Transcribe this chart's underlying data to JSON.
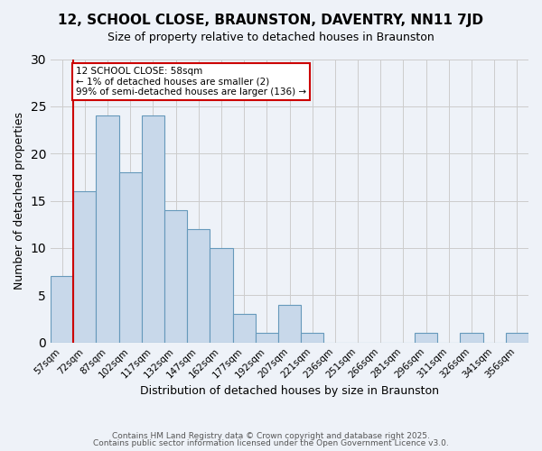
{
  "title": "12, SCHOOL CLOSE, BRAUNSTON, DAVENTRY, NN11 7JD",
  "subtitle": "Size of property relative to detached houses in Braunston",
  "xlabel": "Distribution of detached houses by size in Braunston",
  "ylabel": "Number of detached properties",
  "bar_color": "#c8d8ea",
  "bar_edge_color": "#6699bb",
  "categories": [
    "57sqm",
    "72sqm",
    "87sqm",
    "102sqm",
    "117sqm",
    "132sqm",
    "147sqm",
    "162sqm",
    "177sqm",
    "192sqm",
    "207sqm",
    "221sqm",
    "236sqm",
    "251sqm",
    "266sqm",
    "281sqm",
    "296sqm",
    "311sqm",
    "326sqm",
    "341sqm",
    "356sqm"
  ],
  "values": [
    7,
    16,
    24,
    18,
    24,
    14,
    12,
    10,
    3,
    1,
    4,
    1,
    0,
    0,
    0,
    0,
    1,
    0,
    1,
    0,
    1
  ],
  "ylim": [
    0,
    30
  ],
  "yticks": [
    0,
    5,
    10,
    15,
    20,
    25,
    30
  ],
  "annotation_line1": "12 SCHOOL CLOSE: 58sqm",
  "annotation_line2": "← 1% of detached houses are smaller (2)",
  "annotation_line3": "99% of semi-detached houses are larger (136) →",
  "vline_color": "#cc0000",
  "grid_color": "#cccccc",
  "background_color": "#eef2f8",
  "footer_line1": "Contains HM Land Registry data © Crown copyright and database right 2025.",
  "footer_line2": "Contains public sector information licensed under the Open Government Licence v3.0."
}
